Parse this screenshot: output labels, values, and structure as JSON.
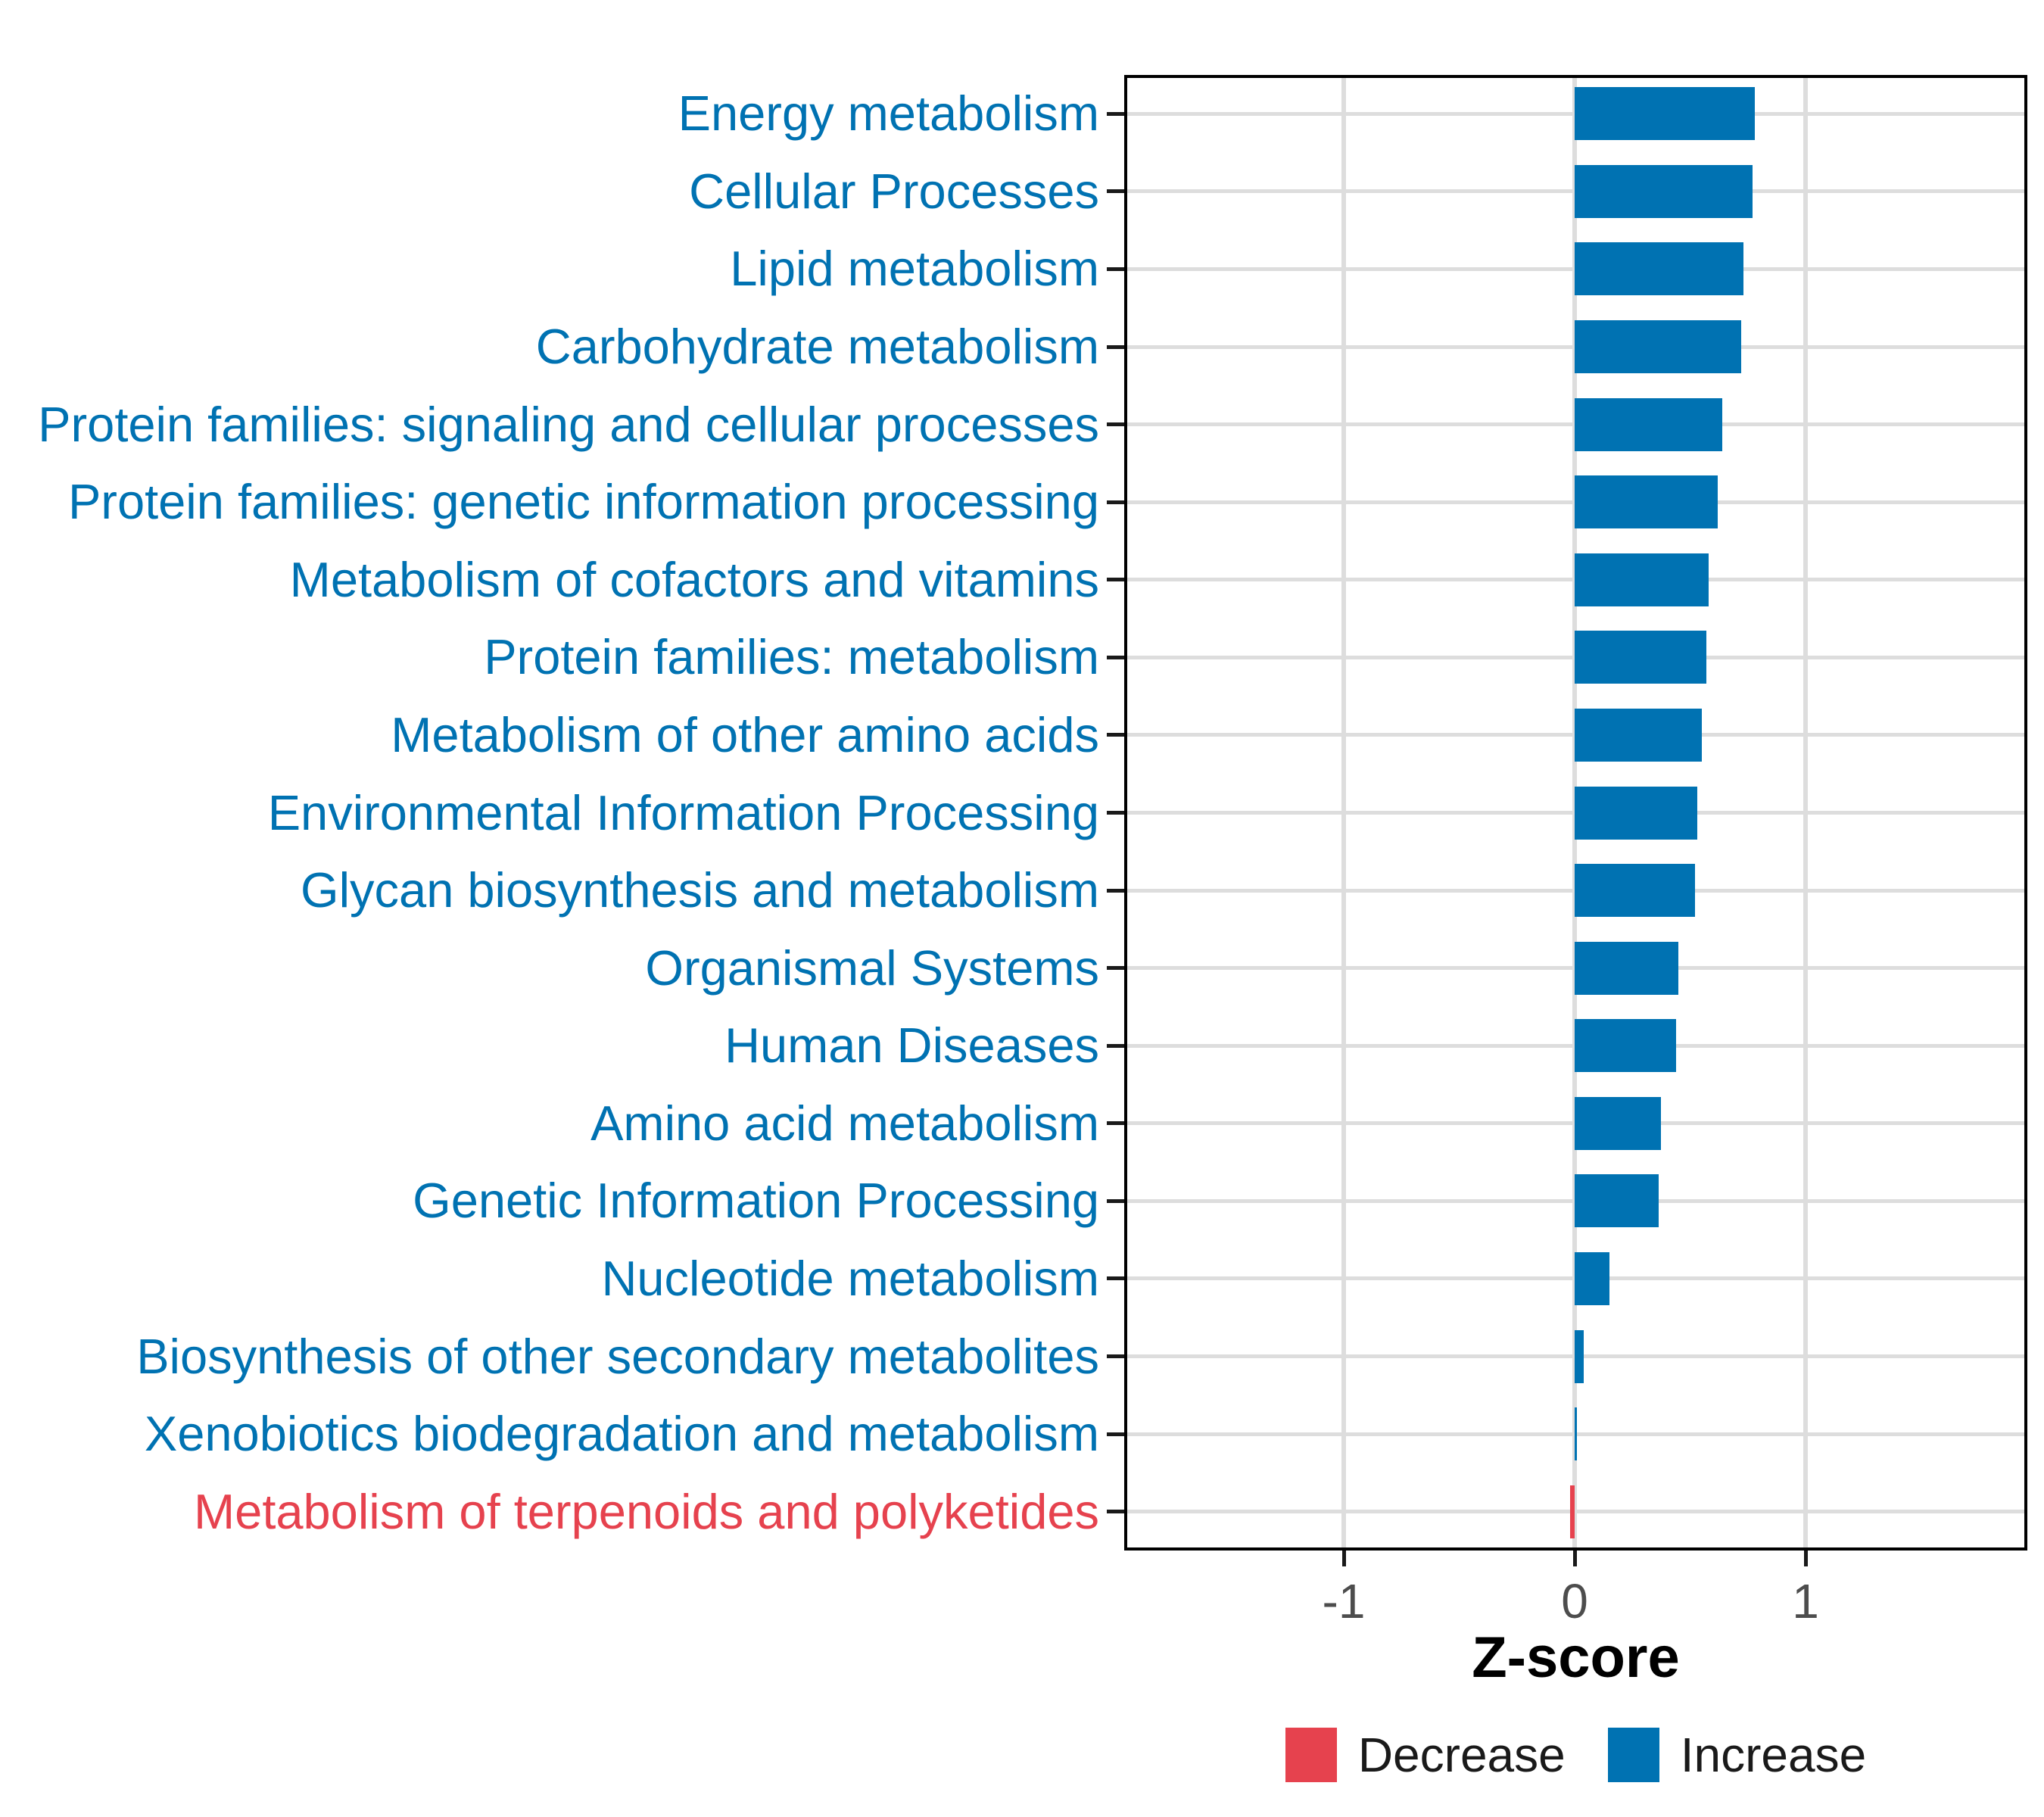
{
  "chart_data": {
    "type": "bar",
    "orientation": "horizontal",
    "title": "",
    "xlabel": "Z-score",
    "ylabel": "",
    "grid": "major",
    "legend_position": "bottom",
    "xlim": [
      -1.95,
      1.96
    ],
    "categories": [
      "Energy metabolism",
      "Cellular Processes",
      "Lipid metabolism",
      "Carbohydrate metabolism",
      "Protein families: signaling and cellular processes",
      "Protein families: genetic information processing",
      "Metabolism of cofactors and vitamins",
      "Protein families: metabolism",
      "Metabolism of other amino acids",
      "Environmental Information Processing",
      "Glycan biosynthesis and metabolism",
      "Organismal Systems",
      "Human Diseases",
      "Amino acid metabolism",
      "Genetic Information Processing",
      "Nucleotide metabolism",
      "Biosynthesis of other secondary metabolites",
      "Xenobiotics biodegradation and metabolism",
      "Metabolism of terpenoids and polyketides"
    ],
    "values": [
      0.78,
      0.77,
      0.73,
      0.72,
      0.64,
      0.62,
      0.58,
      0.57,
      0.55,
      0.53,
      0.52,
      0.45,
      0.44,
      0.375,
      0.365,
      0.15,
      0.04,
      0.01,
      -0.02
    ],
    "directions": [
      "Increase",
      "Increase",
      "Increase",
      "Increase",
      "Increase",
      "Increase",
      "Increase",
      "Increase",
      "Increase",
      "Increase",
      "Increase",
      "Increase",
      "Increase",
      "Increase",
      "Increase",
      "Increase",
      "Increase",
      "Increase",
      "Decrease"
    ],
    "x_ticks": [
      {
        "value": -1,
        "label": "-1"
      },
      {
        "value": 0,
        "label": "0"
      },
      {
        "value": 1,
        "label": "1"
      }
    ],
    "legend": {
      "entries": [
        {
          "label": "Decrease",
          "color": "#E6424E"
        },
        {
          "label": "Increase",
          "color": "#0072B2"
        }
      ]
    },
    "colors": {
      "increase": "#0072B2",
      "decrease": "#E6424E",
      "gridline": "#DDDDDD",
      "axis_text": "#4D4D4D",
      "tick_mark": "#1A1A1A",
      "panel_border": "#000000",
      "background": "#FFFFFF"
    }
  }
}
